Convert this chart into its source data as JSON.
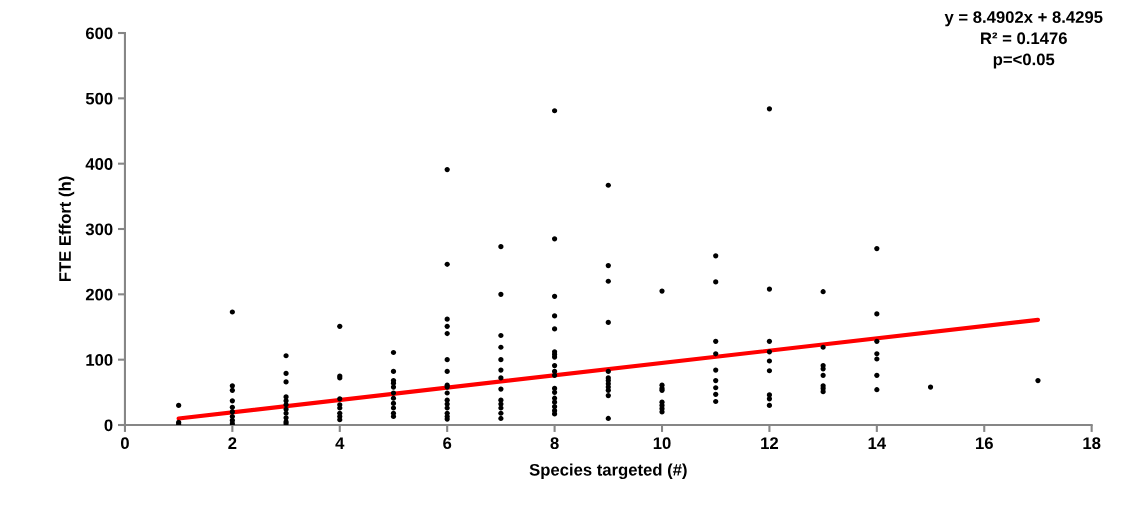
{
  "chart_data": {
    "type": "scatter",
    "xlabel": "Species targeted (#)",
    "ylabel": "FTE Effort (h)",
    "xlim": [
      0,
      18
    ],
    "xticks": [
      0,
      2,
      4,
      6,
      8,
      10,
      12,
      14,
      16,
      18
    ],
    "ylim": [
      0,
      600
    ],
    "yticks": [
      0,
      100,
      200,
      300,
      400,
      500,
      600
    ],
    "grid": false,
    "legend": false,
    "annotations": [
      "y = 8.4902x + 8.4295",
      "R² = 0.1476",
      "p=<0.05"
    ],
    "series": [
      {
        "color": "#000000",
        "marker": "circle",
        "x": [
          1,
          1,
          1,
          2,
          2,
          2,
          2,
          2,
          2,
          2,
          2,
          2,
          3,
          3,
          3,
          3,
          3,
          3,
          3,
          3,
          3,
          3,
          3,
          4,
          4,
          4,
          4,
          4,
          4,
          4,
          4,
          4,
          5,
          5,
          5,
          5,
          5,
          5,
          5,
          5,
          5,
          5,
          5,
          6,
          6,
          6,
          6,
          6,
          6,
          6,
          6,
          6,
          6,
          6,
          6,
          6,
          6,
          6,
          6,
          7,
          7,
          7,
          7,
          7,
          7,
          7,
          7,
          7,
          7,
          7,
          7,
          7,
          8,
          8,
          8,
          8,
          8,
          8,
          8,
          8,
          8,
          8,
          8,
          8,
          8,
          8,
          8,
          8,
          8,
          8,
          9,
          9,
          9,
          9,
          9,
          9,
          9,
          9,
          9,
          9,
          9,
          9,
          10,
          10,
          10,
          10,
          10,
          10,
          10,
          10,
          11,
          11,
          11,
          11,
          11,
          11,
          11,
          11,
          11,
          12,
          12,
          12,
          12,
          12,
          12,
          12,
          12,
          12,
          13,
          13,
          13,
          13,
          13,
          13,
          13,
          13,
          14,
          14,
          14,
          14,
          14,
          14,
          14,
          15,
          17
        ],
        "values": [
          30,
          4,
          1,
          173,
          60,
          53,
          37,
          27,
          20,
          13,
          7,
          2,
          106,
          79,
          66,
          43,
          37,
          31,
          24,
          18,
          11,
          5,
          2,
          151,
          75,
          72,
          40,
          31,
          26,
          18,
          13,
          8,
          111,
          82,
          68,
          64,
          58,
          49,
          41,
          33,
          26,
          18,
          13,
          391,
          246,
          162,
          151,
          140,
          100,
          82,
          61,
          58,
          49,
          38,
          32,
          26,
          18,
          13,
          9,
          273,
          200,
          137,
          119,
          100,
          84,
          72,
          55,
          38,
          32,
          26,
          18,
          10,
          481,
          285,
          197,
          167,
          147,
          112,
          108,
          104,
          91,
          82,
          76,
          56,
          50,
          41,
          35,
          28,
          22,
          17,
          367,
          244,
          220,
          157,
          82,
          72,
          68,
          63,
          58,
          53,
          45,
          10,
          205,
          61,
          56,
          53,
          35,
          30,
          25,
          20,
          259,
          219,
          128,
          109,
          84,
          68,
          57,
          47,
          36,
          484,
          208,
          128,
          112,
          98,
          83,
          46,
          40,
          30,
          204,
          119,
          91,
          86,
          76,
          60,
          56,
          51,
          270,
          170,
          128,
          109,
          101,
          76,
          54,
          58,
          68
        ]
      },
      {
        "type": "line",
        "color": "#ff0000",
        "marker": "none",
        "x": [
          1,
          17
        ],
        "values": [
          10,
          161
        ]
      }
    ]
  }
}
